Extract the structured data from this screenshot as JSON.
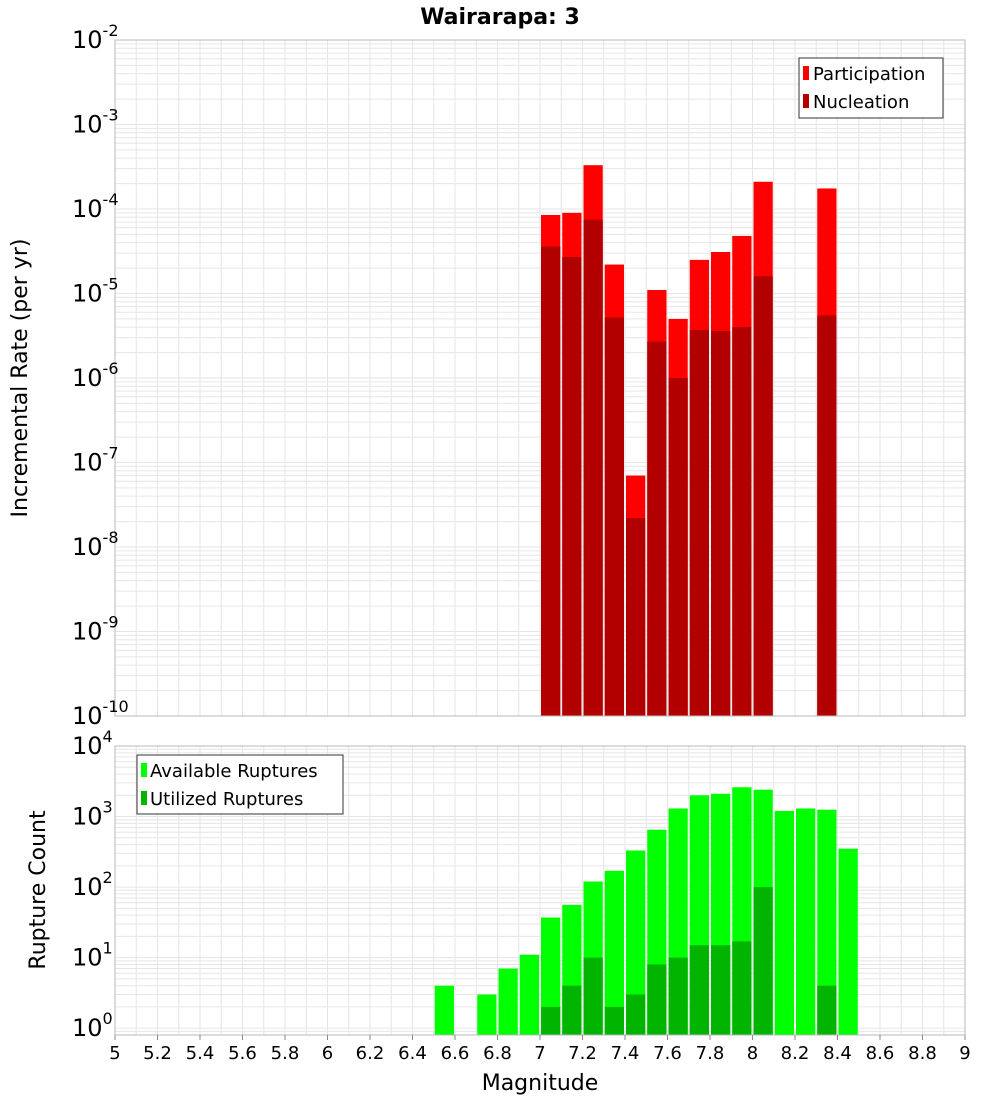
{
  "title": "Wairarapa: 3",
  "xlabel": "Magnitude",
  "x_ticks": [
    "5",
    "5.2",
    "5.4",
    "5.6",
    "5.8",
    "6",
    "6.2",
    "6.4",
    "6.6",
    "6.8",
    "7",
    "7.2",
    "7.4",
    "7.6",
    "7.8",
    "8",
    "8.2",
    "8.4",
    "8.6",
    "8.8",
    "9"
  ],
  "colors": {
    "participation": "#ff0000",
    "nucleation": "#b20000",
    "available": "#00ff00",
    "utilized": "#00b400",
    "grid": "#e6e6e6",
    "frame": "#b8b8b8"
  },
  "chart_data": [
    {
      "type": "bar",
      "panel": "top",
      "ylabel": "Incremental Rate (per yr)",
      "yscale": "log",
      "ylim": [
        1e-10,
        0.01
      ],
      "xlim": [
        5,
        9
      ],
      "bin_width": 0.1,
      "y_ticks": [
        {
          "base": "10",
          "exp": "-2",
          "value": 0.01
        },
        {
          "base": "10",
          "exp": "-3",
          "value": 0.001
        },
        {
          "base": "10",
          "exp": "-4",
          "value": 0.0001
        },
        {
          "base": "10",
          "exp": "-5",
          "value": 1e-05
        },
        {
          "base": "10",
          "exp": "-6",
          "value": 1e-06
        },
        {
          "base": "10",
          "exp": "-7",
          "value": 1e-07
        },
        {
          "base": "10",
          "exp": "-8",
          "value": 1e-08
        },
        {
          "base": "10",
          "exp": "-9",
          "value": 1e-09
        },
        {
          "base": "10",
          "exp": "-10",
          "value": 1e-10
        }
      ],
      "legend": [
        {
          "label": "Participation",
          "color_key": "participation"
        },
        {
          "label": "Nucleation",
          "color_key": "nucleation"
        }
      ],
      "x": [
        7.05,
        7.15,
        7.25,
        7.35,
        7.45,
        7.55,
        7.65,
        7.75,
        7.85,
        7.95,
        8.05,
        8.35
      ],
      "series": [
        {
          "name": "Participation",
          "color_key": "participation",
          "values": [
            8.5e-05,
            9e-05,
            0.00033,
            2.2e-05,
            7e-08,
            1.1e-05,
            5e-06,
            2.5e-05,
            3.1e-05,
            4.8e-05,
            0.00021,
            0.000175
          ]
        },
        {
          "name": "Nucleation",
          "color_key": "nucleation",
          "values": [
            3.6e-05,
            2.7e-05,
            7.5e-05,
            5.2e-06,
            2.2e-08,
            2.7e-06,
            1e-06,
            3.7e-06,
            3.6e-06,
            4e-06,
            1.6e-05,
            5.5e-06
          ]
        }
      ]
    },
    {
      "type": "bar",
      "panel": "bottom",
      "ylabel": "Rupture Count",
      "yscale": "log",
      "ylim": [
        0.8,
        10000
      ],
      "xlim": [
        5,
        9
      ],
      "bin_width": 0.1,
      "y_ticks": [
        {
          "base": "10",
          "exp": "4",
          "value": 10000
        },
        {
          "base": "10",
          "exp": "3",
          "value": 1000
        },
        {
          "base": "10",
          "exp": "2",
          "value": 100
        },
        {
          "base": "10",
          "exp": "1",
          "value": 10
        },
        {
          "base": "10",
          "exp": "0",
          "value": 1
        }
      ],
      "legend": [
        {
          "label": "Available Ruptures",
          "color_key": "available"
        },
        {
          "label": "Utilized Ruptures",
          "color_key": "utilized"
        }
      ],
      "series": [
        {
          "name": "Available Ruptures",
          "color_key": "available",
          "x": [
            6.55,
            6.75,
            6.85,
            6.95,
            7.05,
            7.15,
            7.25,
            7.35,
            7.45,
            7.55,
            7.65,
            7.75,
            7.85,
            7.95,
            8.05,
            8.15,
            8.25,
            8.35,
            8.45
          ],
          "values": [
            4,
            3,
            7,
            11,
            37,
            56,
            120,
            170,
            330,
            650,
            1300,
            2000,
            2100,
            2600,
            2400,
            1200,
            1300,
            1250,
            350
          ]
        },
        {
          "name": "Utilized Ruptures",
          "color_key": "utilized",
          "x": [
            7.05,
            7.15,
            7.25,
            7.35,
            7.45,
            7.55,
            7.65,
            7.75,
            7.85,
            7.95,
            8.05,
            8.35
          ],
          "values": [
            2,
            4,
            10,
            2,
            3,
            8,
            10,
            15,
            15,
            17,
            100,
            4
          ]
        }
      ]
    }
  ]
}
